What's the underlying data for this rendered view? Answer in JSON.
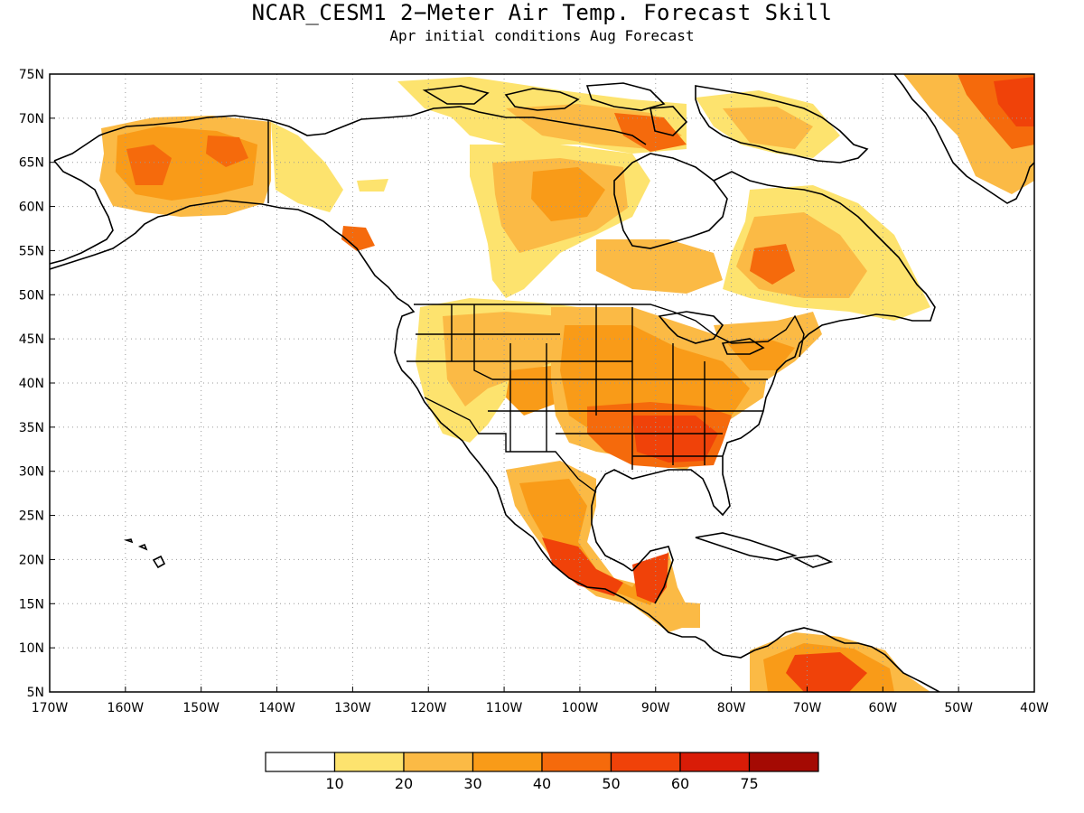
{
  "header": {
    "title": "NCAR_CESM1 2−Meter Air Temp. Forecast Skill",
    "subtitle": "Apr initial conditions  Aug Forecast"
  },
  "map": {
    "lon_range": [
      -170,
      -40
    ],
    "lat_range": [
      5,
      75
    ],
    "lat_ticks": [
      "75N",
      "70N",
      "65N",
      "60N",
      "55N",
      "50N",
      "45N",
      "40N",
      "35N",
      "30N",
      "25N",
      "20N",
      "15N",
      "10N",
      "5N"
    ],
    "lon_ticks": [
      "170W",
      "160W",
      "150W",
      "140W",
      "130W",
      "120W",
      "110W",
      "100W",
      "90W",
      "80W",
      "70W",
      "60W",
      "50W",
      "40W"
    ],
    "grid": "dotted",
    "colors": {
      "land_outline": "#000000",
      "level_10_20": "#fde36e",
      "level_20_30": "#fbba45",
      "level_30_40": "#f99b18",
      "level_40_50": "#f56a0c",
      "level_50_60": "#f04209",
      "level_60_75": "#d91c07",
      "level_75_plus": "#a40a03"
    }
  },
  "colorbar": {
    "labels": [
      "10",
      "20",
      "30",
      "40",
      "50",
      "60",
      "75"
    ],
    "colors": [
      "#ffffff",
      "#fde36e",
      "#fbba45",
      "#f99b18",
      "#f56a0c",
      "#f04209",
      "#d91c07",
      "#a40a03"
    ]
  }
}
